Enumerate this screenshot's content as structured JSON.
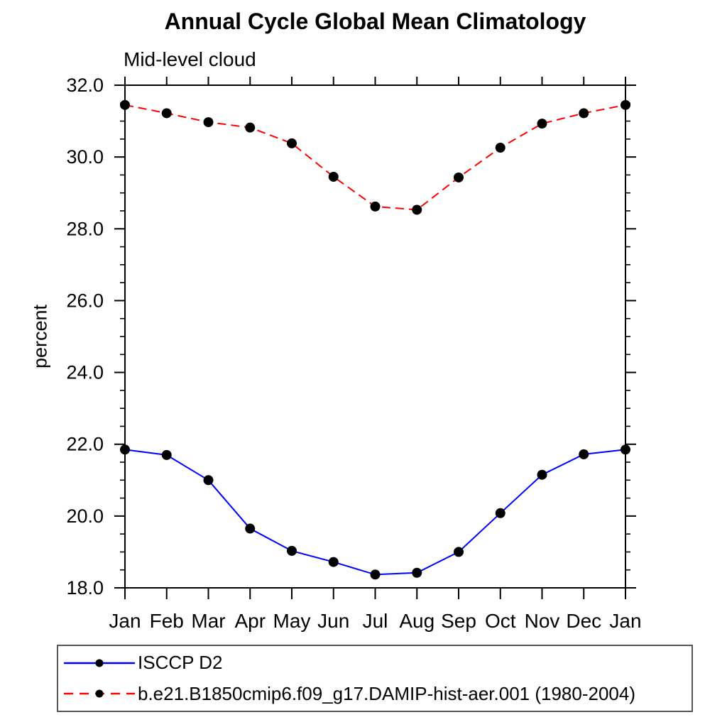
{
  "title": "Annual Cycle Global Mean Climatology",
  "subtitle": "Mid-level cloud",
  "chart_data": {
    "type": "line",
    "categories": [
      "Jan",
      "Feb",
      "Mar",
      "Apr",
      "May",
      "Jun",
      "Jul",
      "Aug",
      "Sep",
      "Oct",
      "Nov",
      "Dec",
      "Jan"
    ],
    "series": [
      {
        "name": "ISCCP D2",
        "color": "#0000ff",
        "line_style": "solid",
        "marker": "filled-circle",
        "marker_color": "#000000",
        "values": [
          21.85,
          21.7,
          21.0,
          19.65,
          19.03,
          18.72,
          18.37,
          18.42,
          19.0,
          20.08,
          21.15,
          21.72,
          21.85
        ]
      },
      {
        "name": "b.e21.B1850cmip6.f09_g17.DAMIP-hist-aer.001 (1980-2004)",
        "color": "#ff0000",
        "line_style": "dashed",
        "marker": "filled-circle",
        "marker_color": "#000000",
        "values": [
          31.45,
          31.22,
          30.97,
          30.82,
          30.38,
          29.45,
          28.62,
          28.53,
          29.43,
          30.26,
          30.93,
          31.22,
          31.45
        ]
      }
    ],
    "title": "Annual Cycle Global Mean Climatology",
    "subtitle": "Mid-level cloud",
    "xlabel": "",
    "ylabel": "percent",
    "ylim": [
      18.0,
      32.0
    ],
    "ytick_major_step": 2.0,
    "ytick_minor_step": 0.5,
    "ytick_labels": [
      "18.0",
      "20.0",
      "22.0",
      "24.0",
      "26.0",
      "28.0",
      "30.0",
      "32.0"
    ],
    "grid": false,
    "legend_position": "bottom-left-box",
    "axis_color": "#000000"
  }
}
